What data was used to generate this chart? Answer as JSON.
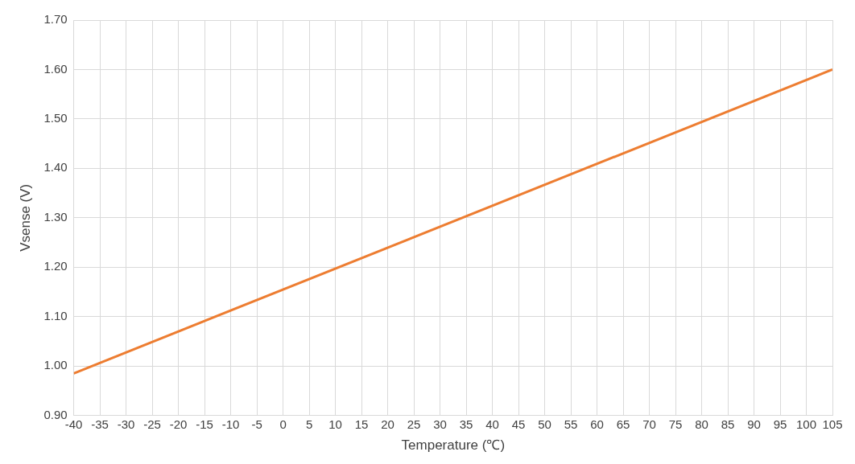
{
  "chart_data": {
    "type": "line",
    "xlabel": "Temperature (℃)",
    "ylabel": "Vsense (V)",
    "x": [
      -40,
      105
    ],
    "series": [
      {
        "color": "#ed7d31",
        "values": [
          0.985,
          1.6
        ]
      }
    ],
    "xlim": [
      -40,
      105
    ],
    "xticks": [
      -40,
      -35,
      -30,
      -25,
      -20,
      -15,
      -10,
      -5,
      0,
      5,
      10,
      15,
      20,
      25,
      30,
      35,
      40,
      45,
      50,
      55,
      60,
      65,
      70,
      75,
      80,
      85,
      90,
      95,
      100,
      105
    ],
    "ylim": [
      0.9,
      1.7
    ],
    "yticks": [
      {
        "value": 0.9,
        "label": "0.90"
      },
      {
        "value": 1.0,
        "label": "1.00"
      },
      {
        "value": 1.1,
        "label": "1.10"
      },
      {
        "value": 1.2,
        "label": "1.20"
      },
      {
        "value": 1.3,
        "label": "1.30"
      },
      {
        "value": 1.4,
        "label": "1.40"
      },
      {
        "value": 1.5,
        "label": "1.50"
      },
      {
        "value": 1.6,
        "label": "1.60"
      },
      {
        "value": 1.7,
        "label": "1.70"
      }
    ],
    "grid": true,
    "legend": false,
    "marker": "none",
    "line_style": "solid"
  }
}
